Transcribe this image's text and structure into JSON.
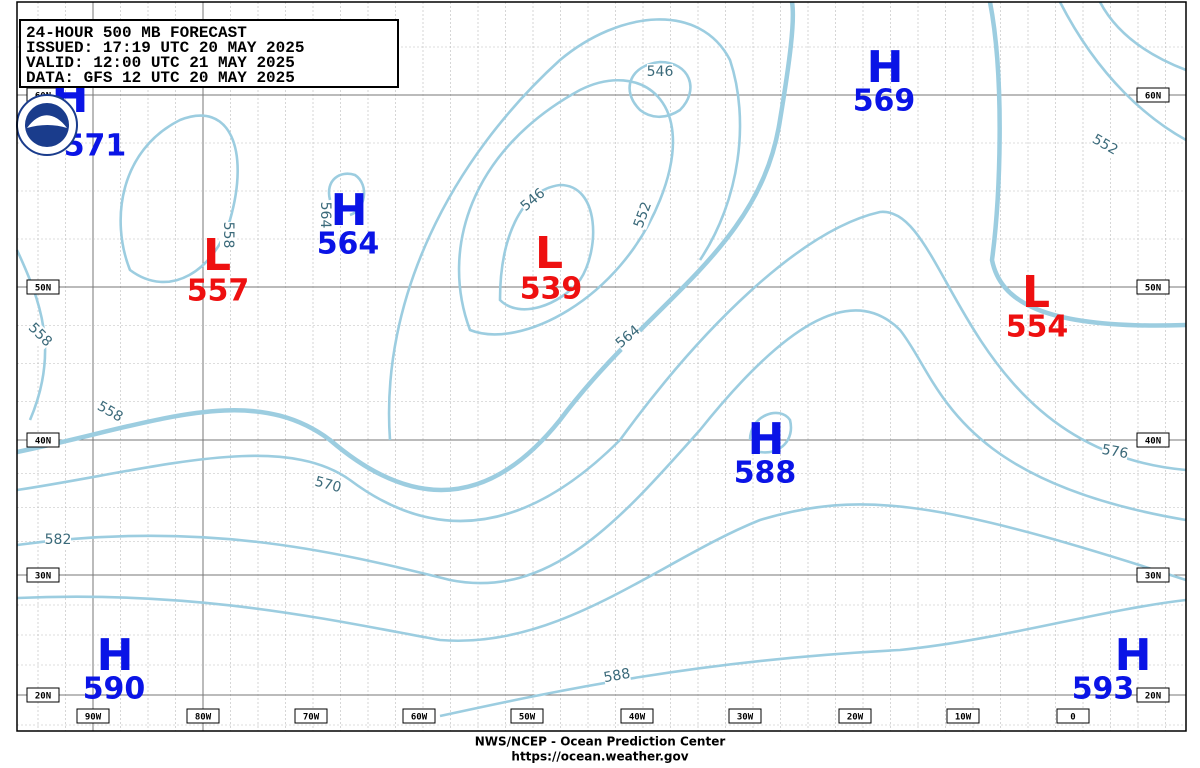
{
  "header": {
    "lines": [
      "24-HOUR 500 MB FORECAST",
      "ISSUED:  17:19 UTC 20 MAY 2025",
      "VALID:   12:00 UTC 21 MAY 2025",
      "DATA:   GFS 12 UTC 20 MAY 2025"
    ]
  },
  "centers": [
    {
      "type": "H",
      "value": "571"
    },
    {
      "type": "L",
      "value": "557"
    },
    {
      "type": "H",
      "value": "564"
    },
    {
      "type": "L",
      "value": "539"
    },
    {
      "type": "H",
      "value": "569"
    },
    {
      "type": "L",
      "value": "554"
    },
    {
      "type": "H",
      "value": "588"
    },
    {
      "type": "H",
      "value": "590"
    },
    {
      "type": "H",
      "value": "593"
    }
  ],
  "contour_labels": [
    "546",
    "546",
    "552",
    "564",
    "558",
    "564",
    "558",
    "558",
    "570",
    "582",
    "588",
    "552",
    "576"
  ],
  "latitudes": [
    "60N",
    "50N",
    "40N",
    "30N",
    "20N"
  ],
  "longitudes": [
    "90W",
    "80W",
    "70W",
    "60W",
    "50W",
    "40W",
    "30W",
    "20W",
    "10W",
    "0"
  ],
  "footer": {
    "line1": "NWS/NCEP - Ocean Prediction Center",
    "line2": "https://ocean.weather.gov"
  }
}
